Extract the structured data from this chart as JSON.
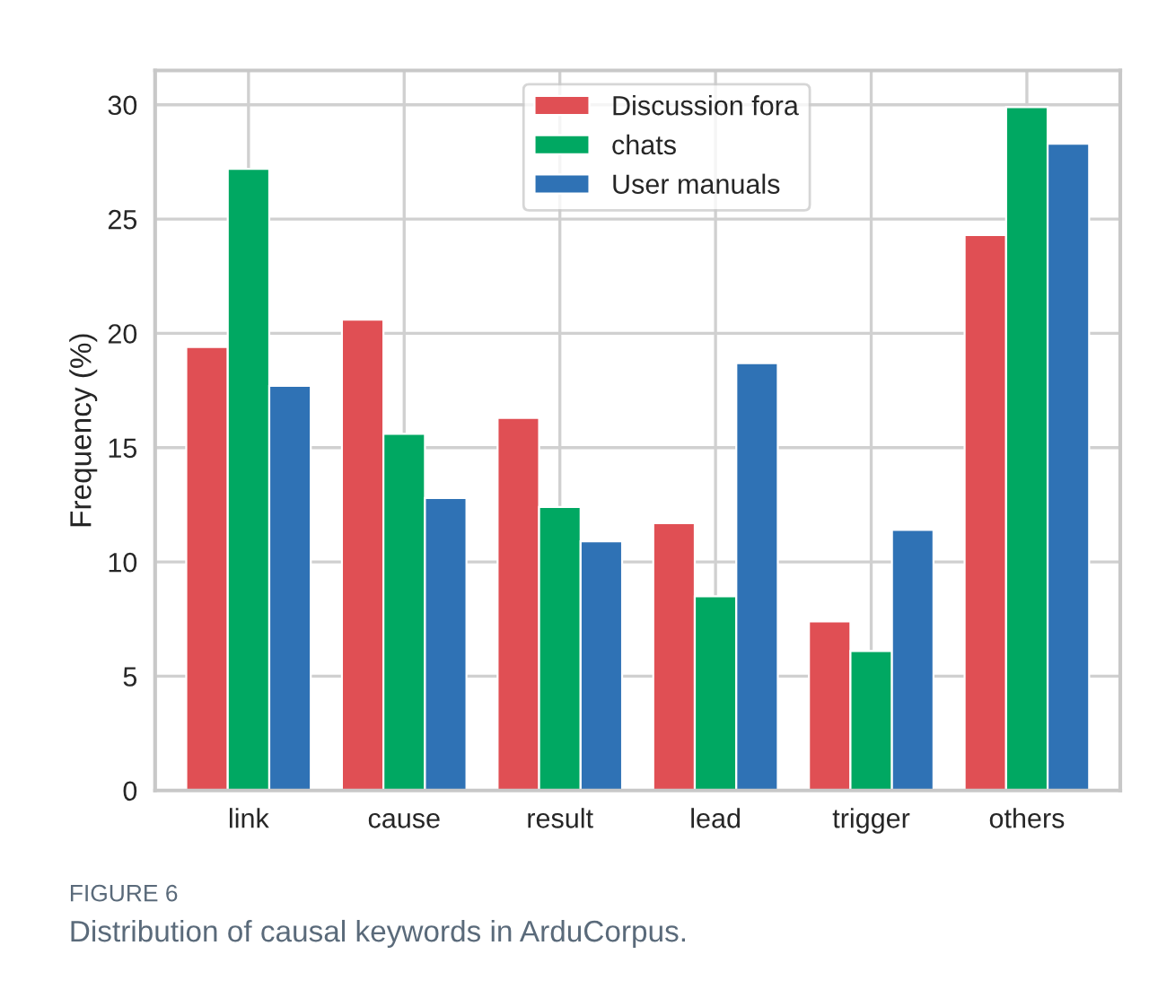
{
  "chart_data": {
    "type": "bar",
    "ylabel": "Frequency (%)",
    "categories": [
      "link",
      "cause",
      "result",
      "lead",
      "trigger",
      "others"
    ],
    "series": [
      {
        "name": "Discussion fora",
        "color": "#e04f54",
        "values": [
          19.4,
          20.6,
          16.3,
          11.7,
          7.4,
          24.3
        ]
      },
      {
        "name": "chats",
        "color": "#00a862",
        "values": [
          27.2,
          15.6,
          12.4,
          8.5,
          6.1,
          29.9
        ]
      },
      {
        "name": "User manuals",
        "color": "#2f72b5",
        "values": [
          17.7,
          12.8,
          10.9,
          18.7,
          11.4,
          28.3
        ]
      }
    ],
    "ylim": [
      0,
      31.5
    ],
    "yticks": [
      0,
      5,
      10,
      15,
      20,
      25,
      30
    ],
    "grid": true,
    "legend": "top",
    "annotations": [
      "FIGURE 6",
      "Distribution of causal keywords in ArduCorpus."
    ]
  }
}
